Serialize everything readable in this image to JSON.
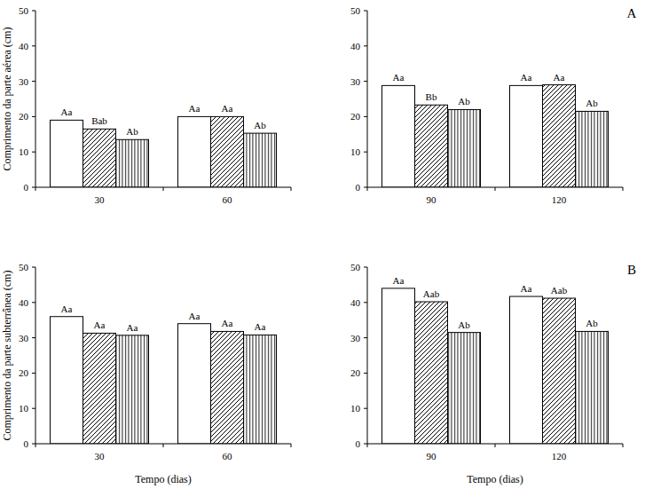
{
  "chart_data": [
    {
      "type": "bar",
      "ylabel": "Comprimento da parte aérea (cm)",
      "categories": [
        "30",
        "60"
      ],
      "ylim": [
        0,
        50
      ],
      "yticks": [
        0,
        10,
        20,
        30,
        40,
        50
      ],
      "series": [
        {
          "color": "#ffffff",
          "values": [
            19,
            20
          ],
          "annotations": [
            "Aa",
            "Aa"
          ]
        },
        {
          "color": "#ffffff",
          "values": [
            16.5,
            20
          ],
          "annotations": [
            "Bab",
            "Aa"
          ]
        },
        {
          "color": "#ffffff",
          "values": [
            13.5,
            15.3
          ],
          "annotations": [
            "Ab",
            "Ab"
          ]
        }
      ]
    },
    {
      "type": "bar",
      "title": "A",
      "categories": [
        "90",
        "120"
      ],
      "ylim": [
        0,
        50
      ],
      "yticks": [
        0,
        10,
        20,
        30,
        40,
        50
      ],
      "series": [
        {
          "color": "#ffffff",
          "values": [
            28.8,
            28.8
          ],
          "annotations": [
            "Aa",
            "Aa"
          ]
        },
        {
          "color": "#ffffff",
          "values": [
            23.3,
            29
          ],
          "annotations": [
            "Bb",
            "Aa"
          ]
        },
        {
          "color": "#ffffff",
          "values": [
            22,
            21.5
          ],
          "annotations": [
            "Ab",
            "Ab"
          ]
        }
      ]
    },
    {
      "type": "bar",
      "ylabel": "Comprimento da parte subterrânea (cm)",
      "xlabel": "Tempo (dias)",
      "categories": [
        "30",
        "60"
      ],
      "ylim": [
        0,
        50
      ],
      "yticks": [
        0,
        10,
        20,
        30,
        40,
        50
      ],
      "series": [
        {
          "color": "#ffffff",
          "values": [
            36,
            34
          ],
          "annotations": [
            "Aa",
            "Aa"
          ]
        },
        {
          "color": "#ffffff",
          "values": [
            31.3,
            31.8
          ],
          "annotations": [
            "Aa",
            "Aa"
          ]
        },
        {
          "color": "#ffffff",
          "values": [
            30.7,
            30.8
          ],
          "annotations": [
            "Aa",
            "Aa"
          ]
        }
      ]
    },
    {
      "type": "bar",
      "title": "B",
      "xlabel": "Tempo (dias)",
      "categories": [
        "90",
        "120"
      ],
      "ylim": [
        0,
        50
      ],
      "yticks": [
        0,
        10,
        20,
        30,
        40,
        50
      ],
      "series": [
        {
          "color": "#ffffff",
          "values": [
            44,
            41.7
          ],
          "annotations": [
            "Aa",
            "Aa"
          ]
        },
        {
          "color": "#ffffff",
          "values": [
            40.2,
            41.2
          ],
          "annotations": [
            "Aab",
            "Aab"
          ]
        },
        {
          "color": "#ffffff",
          "values": [
            31.5,
            31.8
          ],
          "annotations": [
            "Ab",
            "Ab"
          ]
        }
      ]
    }
  ]
}
